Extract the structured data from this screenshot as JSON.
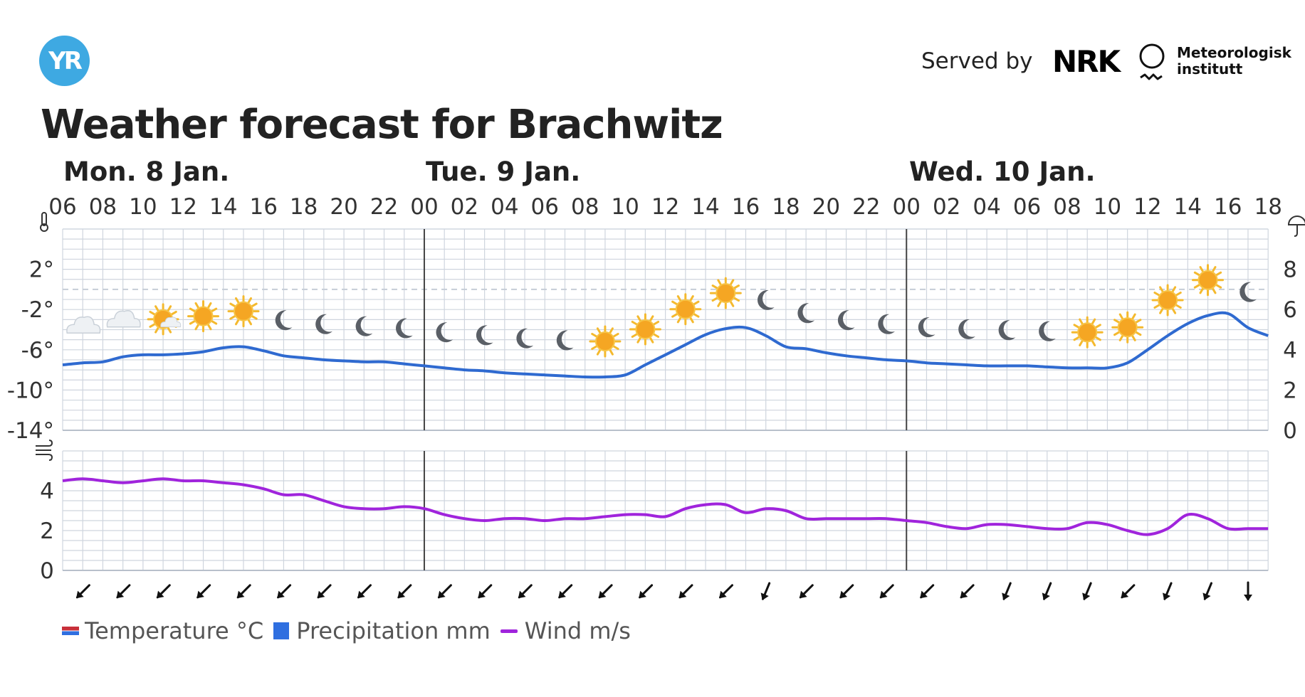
{
  "header": {
    "logo_text": "YR",
    "served_by": "Served by",
    "nrk_text": "NRK",
    "met_line1": "Meteorologisk",
    "met_line2": "institutt",
    "title": "Weather forecast for Brachwitz"
  },
  "days": [
    "Mon. 8 Jan.",
    "Tue. 9 Jan.",
    "Wed. 10 Jan."
  ],
  "legend": {
    "temperature": "Temperature °C",
    "precipitation": "Precipitation mm",
    "wind": "Wind m/s"
  },
  "colors": {
    "temperature_line": "#2f6ad0",
    "wind_line": "#a024dc",
    "grid": "#cfd5de",
    "zero_line": "#c6cdd7",
    "day_divider": "#444444",
    "logo": "#3ea9e2"
  },
  "icons": {
    "temperature_axis": "thermometer-icon",
    "precipitation_axis": "umbrella-icon",
    "wind_axis": "wind-icon"
  },
  "chart_data": [
    {
      "type": "line",
      "title": "",
      "x_tick_labels": [
        "06",
        "08",
        "10",
        "12",
        "14",
        "16",
        "18",
        "20",
        "22",
        "00",
        "02",
        "04",
        "06",
        "08",
        "10",
        "12",
        "14",
        "16",
        "18",
        "20",
        "22",
        "00",
        "02",
        "04",
        "06",
        "08",
        "10",
        "12",
        "14",
        "16",
        "18"
      ],
      "y_left_tick_labels": [
        "2°",
        "-2°",
        "-6°",
        "-10°",
        "-14°"
      ],
      "y_left_ticks": [
        2,
        -2,
        -6,
        -10,
        -14
      ],
      "y_right_tick_labels": [
        "8",
        "6",
        "4",
        "2",
        "0"
      ],
      "ylim": [
        -14,
        6
      ],
      "right_ylim": [
        0,
        10
      ],
      "zero_line": "dashed",
      "grid": true,
      "hours_from_start": [
        0,
        1,
        2,
        3,
        4,
        5,
        6,
        7,
        8,
        9,
        10,
        11,
        12,
        13,
        14,
        15,
        16,
        17,
        18,
        19,
        20,
        21,
        22,
        23,
        24,
        25,
        26,
        27,
        28,
        29,
        30,
        31,
        32,
        33,
        34,
        35,
        36,
        37,
        38,
        39,
        40,
        41,
        42,
        43,
        44,
        45,
        46,
        47,
        48,
        49,
        50,
        51,
        52,
        53,
        54,
        55,
        56,
        57,
        58,
        59,
        60
      ],
      "series": [
        {
          "name": "Temperature °C",
          "values": [
            -7.5,
            -7.3,
            -7.2,
            -6.7,
            -6.5,
            -6.5,
            -6.4,
            -6.2,
            -5.8,
            -5.7,
            -6.1,
            -6.6,
            -6.8,
            -7.0,
            -7.1,
            -7.2,
            -7.2,
            -7.4,
            -7.6,
            -7.8,
            -8.0,
            -8.1,
            -8.3,
            -8.4,
            -8.5,
            -8.6,
            -8.7,
            -8.7,
            -8.5,
            -7.5,
            -6.5,
            -5.5,
            -4.5,
            -3.9,
            -3.8,
            -4.6,
            -5.7,
            -5.9,
            -6.3,
            -6.6,
            -6.8,
            -7.0,
            -7.1,
            -7.3,
            -7.4,
            -7.5,
            -7.6,
            -7.6,
            -7.6,
            -7.7,
            -7.8,
            -7.8,
            -7.8,
            -7.3,
            -6.0,
            -4.6,
            -3.4,
            -2.6,
            -2.4,
            -3.8,
            -4.6
          ]
        }
      ],
      "symbols": [
        {
          "hour": 1,
          "icon": "cloud-icon"
        },
        {
          "hour": 3,
          "icon": "cloud-icon"
        },
        {
          "hour": 5,
          "icon": "partly-cloudy-sun-icon"
        },
        {
          "hour": 7,
          "icon": "sun-icon"
        },
        {
          "hour": 9,
          "icon": "sun-icon"
        },
        {
          "hour": 11,
          "icon": "moon-icon"
        },
        {
          "hour": 13,
          "icon": "moon-icon"
        },
        {
          "hour": 15,
          "icon": "moon-icon"
        },
        {
          "hour": 17,
          "icon": "moon-icon"
        },
        {
          "hour": 19,
          "icon": "moon-icon"
        },
        {
          "hour": 21,
          "icon": "moon-icon"
        },
        {
          "hour": 23,
          "icon": "moon-icon"
        },
        {
          "hour": 25,
          "icon": "moon-icon"
        },
        {
          "hour": 27,
          "icon": "sun-icon"
        },
        {
          "hour": 29,
          "icon": "sun-icon"
        },
        {
          "hour": 31,
          "icon": "sun-icon"
        },
        {
          "hour": 33,
          "icon": "sun-icon"
        },
        {
          "hour": 35,
          "icon": "moon-icon"
        },
        {
          "hour": 37,
          "icon": "moon-icon"
        },
        {
          "hour": 39,
          "icon": "moon-icon"
        },
        {
          "hour": 41,
          "icon": "moon-icon"
        },
        {
          "hour": 43,
          "icon": "moon-icon"
        },
        {
          "hour": 45,
          "icon": "moon-icon"
        },
        {
          "hour": 47,
          "icon": "moon-icon"
        },
        {
          "hour": 49,
          "icon": "moon-icon"
        },
        {
          "hour": 51,
          "icon": "sun-icon"
        },
        {
          "hour": 53,
          "icon": "sun-icon"
        },
        {
          "hour": 55,
          "icon": "sun-icon"
        },
        {
          "hour": 57,
          "icon": "sun-icon"
        },
        {
          "hour": 59,
          "icon": "moon-icon"
        }
      ]
    },
    {
      "type": "line",
      "title": "",
      "y_tick_labels": [
        "4",
        "2",
        "0"
      ],
      "y_ticks": [
        4,
        2,
        0
      ],
      "ylim": [
        0,
        6
      ],
      "grid": true,
      "hours_from_start": [
        0,
        1,
        2,
        3,
        4,
        5,
        6,
        7,
        8,
        9,
        10,
        11,
        12,
        13,
        14,
        15,
        16,
        17,
        18,
        19,
        20,
        21,
        22,
        23,
        24,
        25,
        26,
        27,
        28,
        29,
        30,
        31,
        32,
        33,
        34,
        35,
        36,
        37,
        38,
        39,
        40,
        41,
        42,
        43,
        44,
        45,
        46,
        47,
        48,
        49,
        50,
        51,
        52,
        53,
        54,
        55,
        56,
        57,
        58,
        59,
        60
      ],
      "series": [
        {
          "name": "Wind m/s",
          "values": [
            4.5,
            4.6,
            4.5,
            4.4,
            4.5,
            4.6,
            4.5,
            4.5,
            4.4,
            4.3,
            4.1,
            3.8,
            3.8,
            3.5,
            3.2,
            3.1,
            3.1,
            3.2,
            3.1,
            2.8,
            2.6,
            2.5,
            2.6,
            2.6,
            2.5,
            2.6,
            2.6,
            2.7,
            2.8,
            2.8,
            2.7,
            3.1,
            3.3,
            3.3,
            2.9,
            3.1,
            3.0,
            2.6,
            2.6,
            2.6,
            2.6,
            2.6,
            2.5,
            2.4,
            2.2,
            2.1,
            2.3,
            2.3,
            2.2,
            2.1,
            2.1,
            2.4,
            2.3,
            2.0,
            1.8,
            2.1,
            2.8,
            2.6,
            2.1,
            2.1,
            2.1
          ]
        }
      ],
      "direction_arrows": [
        {
          "hour": 1,
          "points_to": "SW"
        },
        {
          "hour": 3,
          "points_to": "SW"
        },
        {
          "hour": 5,
          "points_to": "SW"
        },
        {
          "hour": 7,
          "points_to": "SW"
        },
        {
          "hour": 9,
          "points_to": "SW"
        },
        {
          "hour": 11,
          "points_to": "SW"
        },
        {
          "hour": 13,
          "points_to": "SW"
        },
        {
          "hour": 15,
          "points_to": "SW"
        },
        {
          "hour": 17,
          "points_to": "SW"
        },
        {
          "hour": 19,
          "points_to": "SW"
        },
        {
          "hour": 21,
          "points_to": "SW"
        },
        {
          "hour": 23,
          "points_to": "SW"
        },
        {
          "hour": 25,
          "points_to": "SW"
        },
        {
          "hour": 27,
          "points_to": "SW"
        },
        {
          "hour": 29,
          "points_to": "SW"
        },
        {
          "hour": 31,
          "points_to": "SW"
        },
        {
          "hour": 33,
          "points_to": "SW"
        },
        {
          "hour": 35,
          "points_to": "SSW"
        },
        {
          "hour": 37,
          "points_to": "SW"
        },
        {
          "hour": 39,
          "points_to": "SW"
        },
        {
          "hour": 41,
          "points_to": "SW"
        },
        {
          "hour": 43,
          "points_to": "SW"
        },
        {
          "hour": 45,
          "points_to": "SW"
        },
        {
          "hour": 47,
          "points_to": "SSW"
        },
        {
          "hour": 49,
          "points_to": "SSW"
        },
        {
          "hour": 51,
          "points_to": "SSW"
        },
        {
          "hour": 53,
          "points_to": "SW"
        },
        {
          "hour": 55,
          "points_to": "SSW"
        },
        {
          "hour": 57,
          "points_to": "SSW"
        },
        {
          "hour": 59,
          "points_to": "S"
        }
      ]
    }
  ]
}
